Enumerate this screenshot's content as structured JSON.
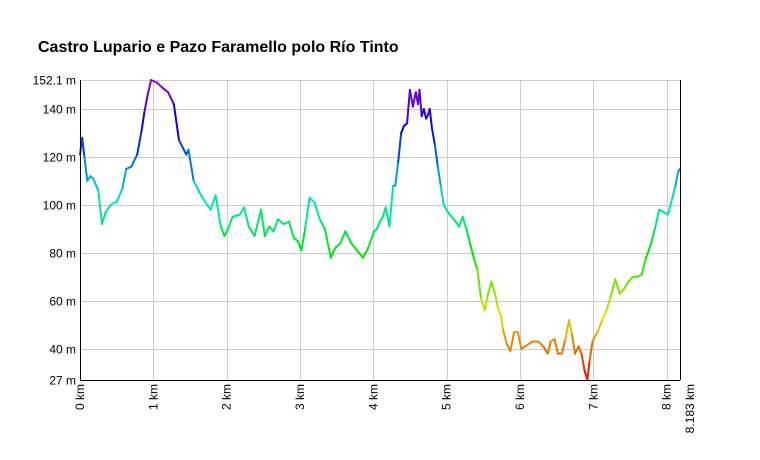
{
  "chart_data": {
    "type": "line",
    "title": "Castro Lupario e Pazo Faramello polo Río Tinto",
    "xlabel": "",
    "ylabel": "",
    "xlim": [
      0,
      8.183
    ],
    "ylim": [
      27,
      152.1
    ],
    "x_ticks": [
      {
        "value": 0,
        "label": "0 km"
      },
      {
        "value": 1,
        "label": "1 km"
      },
      {
        "value": 2,
        "label": "2 km"
      },
      {
        "value": 3,
        "label": "3 km"
      },
      {
        "value": 4,
        "label": "4 km"
      },
      {
        "value": 5,
        "label": "5 km"
      },
      {
        "value": 6,
        "label": "6 km"
      },
      {
        "value": 7,
        "label": "7 km"
      },
      {
        "value": 8,
        "label": "8 km"
      },
      {
        "value": 8.183,
        "label": "8.183 km"
      }
    ],
    "y_ticks": [
      {
        "value": 27,
        "label": "27 m"
      },
      {
        "value": 40,
        "label": "40 m"
      },
      {
        "value": 60,
        "label": "60 m"
      },
      {
        "value": 80,
        "label": "80 m"
      },
      {
        "value": 100,
        "label": "100 m"
      },
      {
        "value": 120,
        "label": "120 m"
      },
      {
        "value": 140,
        "label": "140 m"
      },
      {
        "value": 152.1,
        "label": "152.1 m"
      }
    ],
    "grid": true,
    "legend": "none",
    "color_scale": "elevation: red (low) to violet (high)",
    "series": [
      {
        "x": [
          0,
          0.03,
          0.06,
          0.1,
          0.14,
          0.18,
          0.25,
          0.3,
          0.35,
          0.42,
          0.47,
          0.5,
          0.58,
          0.63,
          0.7,
          0.78,
          0.84,
          0.88,
          0.93,
          0.97,
          1.05,
          1.12,
          1.2,
          1.28,
          1.35,
          1.45,
          1.48,
          1.55,
          1.65,
          1.78,
          1.85,
          1.92,
          1.97,
          2.02,
          2.08,
          2.18,
          2.24,
          2.3,
          2.38,
          2.47,
          2.52,
          2.58,
          2.64,
          2.7,
          2.78,
          2.85,
          2.92,
          2.97,
          3.02,
          3.07,
          3.13,
          3.2,
          3.27,
          3.34,
          3.42,
          3.48,
          3.55,
          3.62,
          3.7,
          3.78,
          3.86,
          3.93,
          4.01,
          4.05,
          4.09,
          4.13,
          4.17,
          4.22,
          4.27,
          4.3,
          4.34,
          4.38,
          4.42,
          4.46,
          4.5,
          4.54,
          4.58,
          4.61,
          4.63,
          4.66,
          4.69,
          4.72,
          4.74,
          4.77,
          4.8,
          4.84,
          4.88,
          4.92,
          4.96,
          5.0,
          5.04,
          5.1,
          5.17,
          5.22,
          5.27,
          5.32,
          5.37,
          5.42,
          5.47,
          5.52,
          5.56,
          5.61,
          5.66,
          5.7,
          5.74,
          5.77,
          5.82,
          5.87,
          5.92,
          5.97,
          6.02,
          6.07,
          6.12,
          6.17,
          6.25,
          6.32,
          6.38,
          6.42,
          6.47,
          6.52,
          6.57,
          6.62,
          6.67,
          6.71,
          6.75,
          6.8,
          6.84,
          6.88,
          6.92,
          6.95,
          6.99,
          7.02,
          7.06,
          7.12,
          7.18,
          7.24,
          7.3,
          7.36,
          7.42,
          7.48,
          7.54,
          7.6,
          7.66,
          7.72,
          7.78,
          7.84,
          7.9,
          7.96,
          8.02,
          8.08,
          8.12,
          8.16,
          8.183
        ],
        "y": [
          121,
          128,
          120,
          110,
          112,
          111,
          106,
          92,
          97,
          100,
          101,
          101,
          107,
          115,
          116,
          121,
          131,
          139,
          147,
          152.1,
          151,
          149,
          147,
          142,
          127,
          121,
          123,
          110,
          104,
          98,
          104,
          91,
          87,
          90,
          95,
          96,
          99,
          91,
          87,
          98,
          87,
          91,
          89,
          94,
          92,
          93,
          86,
          85,
          81,
          90,
          103,
          101,
          94,
          90,
          78,
          82,
          84,
          89,
          84,
          81,
          78,
          82,
          89,
          90,
          93,
          95,
          99,
          91,
          108,
          108,
          118,
          130,
          133,
          134,
          148,
          141,
          147,
          142,
          148,
          137,
          140,
          136,
          137,
          140,
          132,
          125,
          116,
          108,
          100,
          98,
          96,
          94,
          91,
          95,
          90,
          84,
          78,
          73,
          61,
          56,
          62,
          68,
          63,
          57,
          54,
          48,
          42,
          39,
          47,
          47,
          40,
          41,
          42,
          43,
          43,
          41,
          38,
          43,
          44,
          38,
          38,
          44,
          52,
          46,
          38,
          41,
          38,
          31,
          27,
          35,
          43,
          45,
          47,
          52,
          56,
          62,
          69,
          63,
          65,
          68,
          70,
          70,
          71,
          78,
          83,
          90,
          98,
          97,
          96,
          103,
          108,
          114,
          115
        ]
      }
    ]
  }
}
